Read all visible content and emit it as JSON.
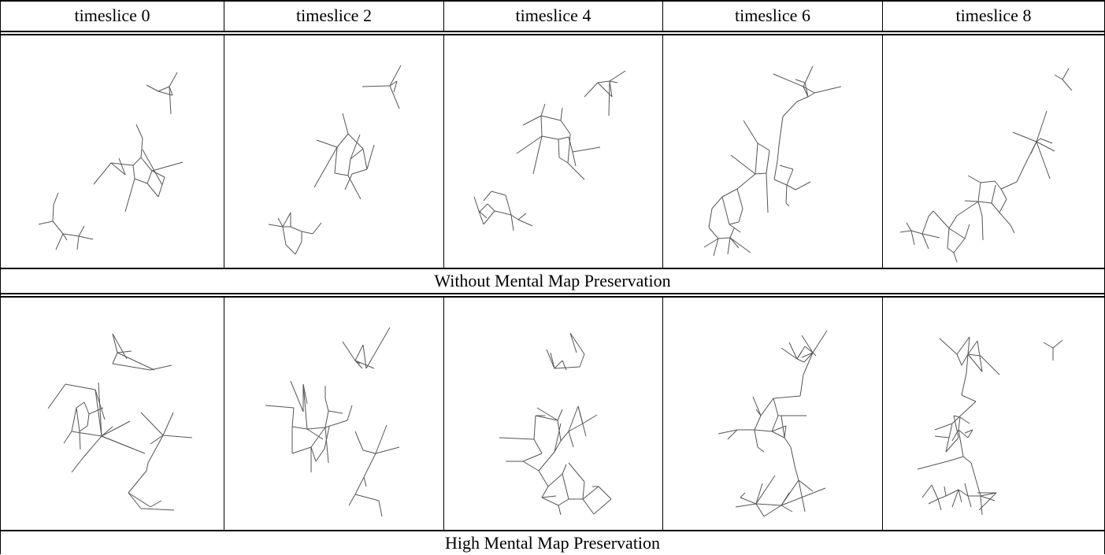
{
  "columns": [
    "timeslice 0",
    "timeslice 2",
    "timeslice 4",
    "timeslice 6",
    "timeslice 8"
  ],
  "rows": [
    {
      "caption": "Without Mental Map Preservation"
    },
    {
      "caption": "High Mental Map Preservation"
    }
  ],
  "colors": {
    "edge": "#555555",
    "rule": "#000000",
    "background": "#ffffff"
  }
}
